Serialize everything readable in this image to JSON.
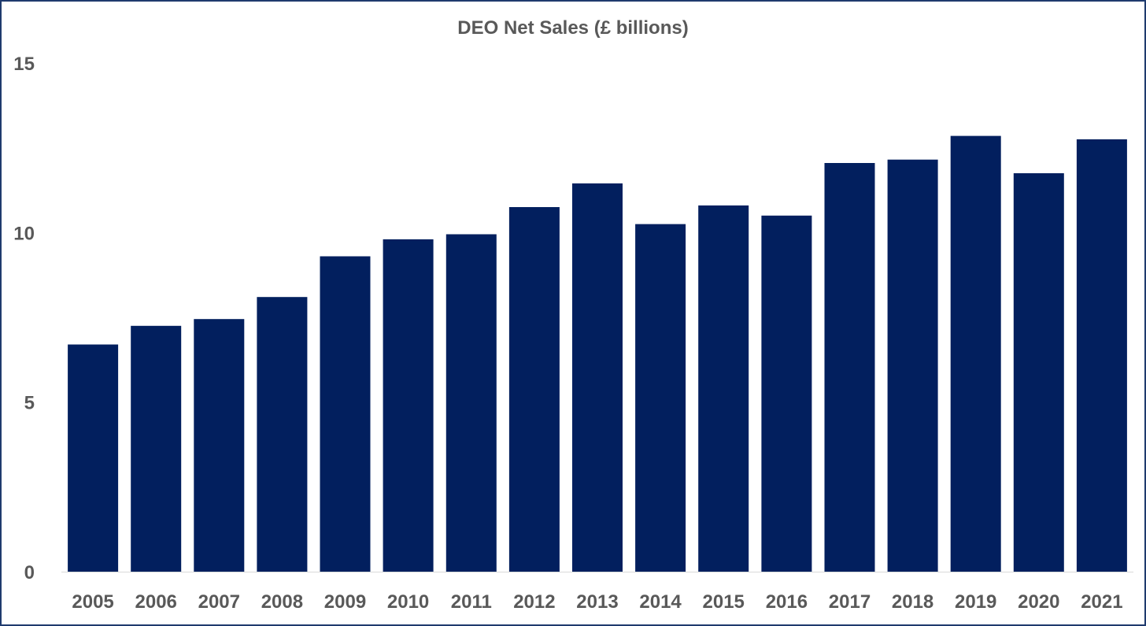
{
  "chart_data": {
    "type": "bar",
    "title": "DEO Net Sales (£ billions)",
    "xlabel": "",
    "ylabel": "",
    "categories": [
      "2005",
      "2006",
      "2007",
      "2008",
      "2009",
      "2010",
      "2011",
      "2012",
      "2013",
      "2014",
      "2015",
      "2016",
      "2017",
      "2018",
      "2019",
      "2020",
      "2021"
    ],
    "series": [
      {
        "values": [
          6.7,
          7.25,
          7.45,
          8.1,
          9.3,
          9.8,
          9.95,
          10.75,
          11.45,
          10.25,
          10.8,
          10.5,
          12.05,
          12.15,
          12.85,
          11.75,
          12.75
        ],
        "color": "#021f5e"
      }
    ],
    "ylim": [
      0,
      15
    ],
    "yticks": [
      0,
      5,
      10,
      15
    ],
    "ytick_labels": [
      "0",
      "5",
      "10",
      "15"
    ],
    "grid": false,
    "legend": "none"
  }
}
